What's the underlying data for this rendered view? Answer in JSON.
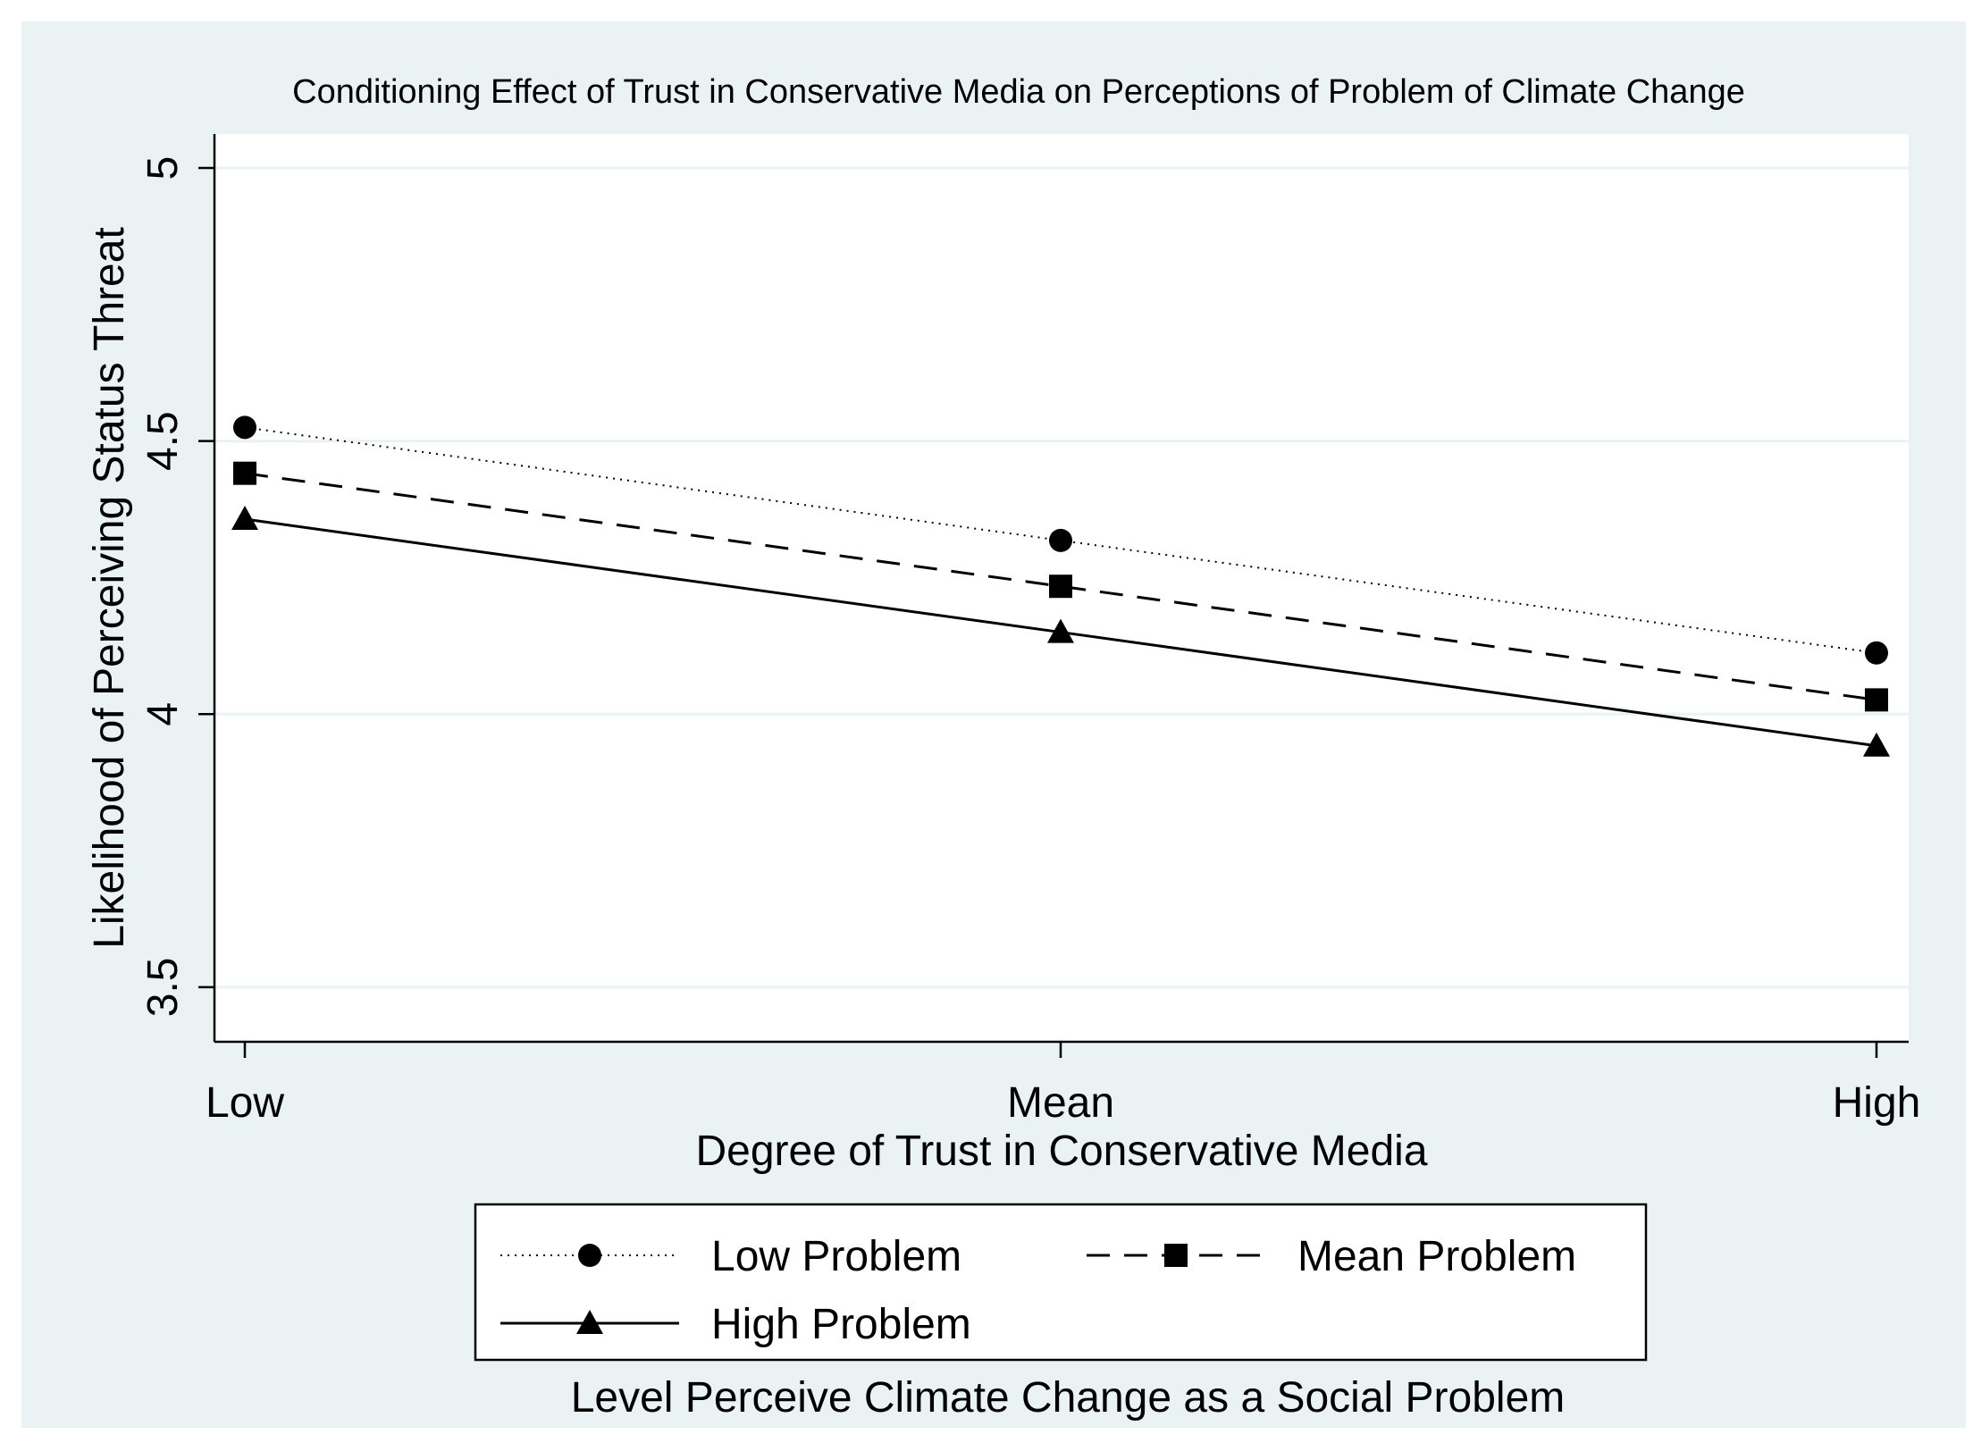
{
  "chart_data": {
    "type": "line",
    "title": "Conditioning Effect of Trust in Conservative Media on Perceptions of Problem of Climate Change",
    "xlabel": "Degree of Trust in Conservative Media",
    "ylabel": "Likelihood of Perceiving Status Threat",
    "categories": [
      "Low",
      "Mean",
      "High"
    ],
    "ylim": [
      3.4,
      5.0
    ],
    "yticks": [
      {
        "value": 3.5,
        "label": "3.5"
      },
      {
        "value": 4.0,
        "label": "4"
      },
      {
        "value": 4.5,
        "label": "4.5"
      },
      {
        "value": 5.0,
        "label": "5"
      }
    ],
    "grid": true,
    "series": [
      {
        "name": "Low Problem",
        "values": [
          4.525,
          4.318,
          4.112
        ],
        "line": "dotted",
        "marker": "circle"
      },
      {
        "name": "Mean Problem",
        "values": [
          4.441,
          4.234,
          4.026
        ],
        "line": "dashed",
        "marker": "square"
      },
      {
        "name": "High Problem",
        "values": [
          4.357,
          4.15,
          3.942
        ],
        "line": "solid",
        "marker": "triangle"
      }
    ],
    "legend": {
      "placement": "bottom",
      "title": "Level Perceive Climate Change as a Social Problem",
      "items": [
        "Low Problem",
        "Mean Problem",
        "High Problem"
      ]
    },
    "colors": {
      "plot_bg": "#ffffff",
      "outer_bg": "#eaf2f3",
      "grid": "#eaf2f3",
      "ink": "#000000"
    }
  }
}
